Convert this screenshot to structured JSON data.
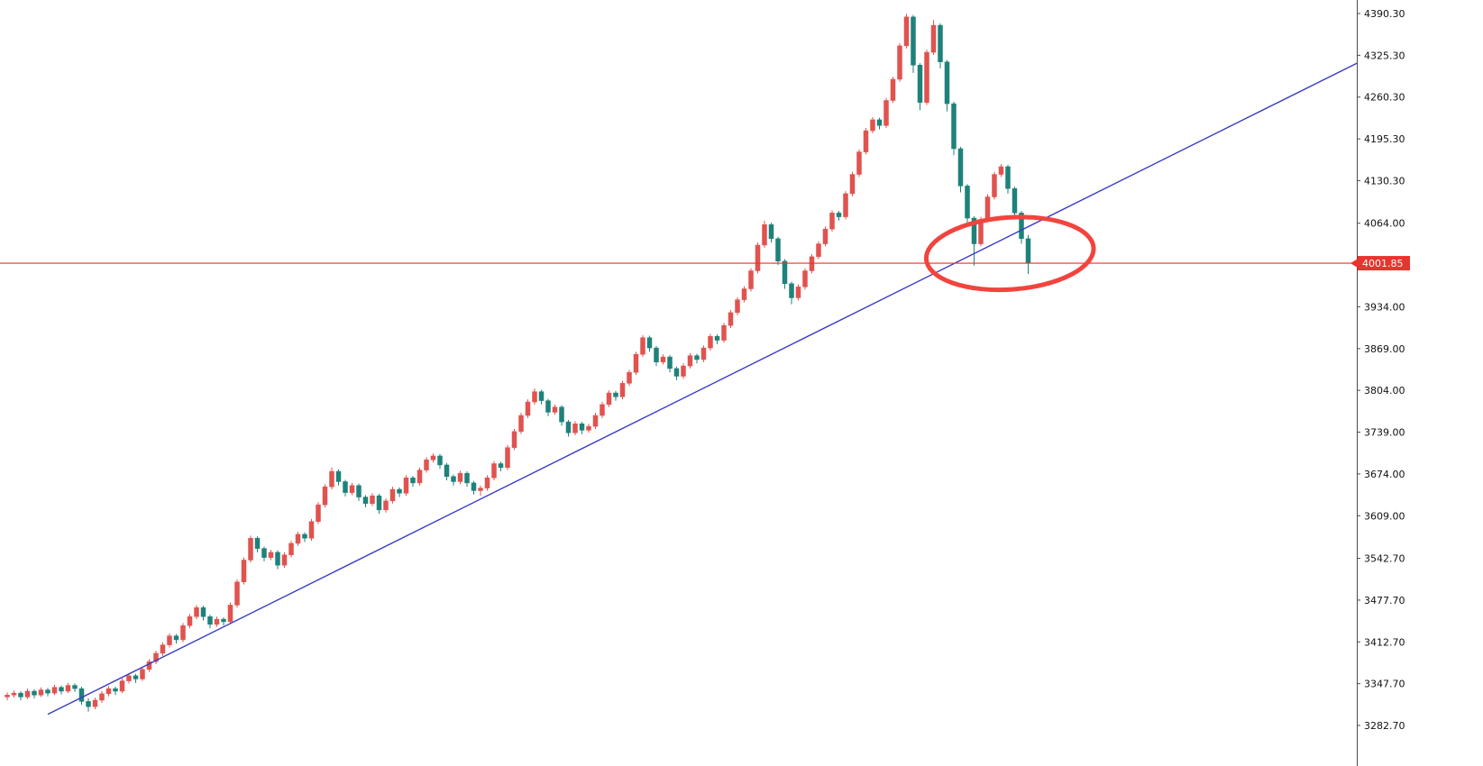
{
  "window": {
    "background": "#ffffff"
  },
  "chart_data": {
    "type": "candlestick",
    "title": "",
    "time_axis_visible": false,
    "colors": {
      "bull": "#e0534f",
      "bear": "#1e827a",
      "axis_text": "#101010",
      "axis_line": "#4a4a4a"
    },
    "price_axis": {
      "side": "right",
      "min": 3282.7,
      "max": 4390.3,
      "ticks": [
        {
          "label": "4390.30",
          "value": 4390.3
        },
        {
          "label": "4325.30",
          "value": 4325.3
        },
        {
          "label": "4260.30",
          "value": 4260.3
        },
        {
          "label": "4195.30",
          "value": 4195.3
        },
        {
          "label": "4130.30",
          "value": 4130.3
        },
        {
          "label": "4064.00",
          "value": 4064.0
        },
        {
          "label": "3934.00",
          "value": 3934.0
        },
        {
          "label": "3869.00",
          "value": 3869.0
        },
        {
          "label": "3804.00",
          "value": 3804.0
        },
        {
          "label": "3739.00",
          "value": 3739.0
        },
        {
          "label": "3674.00",
          "value": 3674.0
        },
        {
          "label": "3609.00",
          "value": 3609.0
        },
        {
          "label": "3542.70",
          "value": 3542.7
        },
        {
          "label": "3477.70",
          "value": 3477.7
        },
        {
          "label": "3412.70",
          "value": 3412.7
        },
        {
          "label": "3347.70",
          "value": 3347.7
        },
        {
          "label": "3282.70",
          "value": 3282.7
        }
      ]
    },
    "price_line": {
      "value": 4001.85,
      "label": "4001.85",
      "line_color": "#ff2a26",
      "tag_color": "#e8342e"
    },
    "trendline": {
      "from": {
        "index": 6,
        "price": 3300
      },
      "to": {
        "index": 200,
        "price": 4315
      },
      "color": "#3a3ac8"
    },
    "annotations": [
      {
        "type": "ellipse",
        "center_index": 148.3,
        "center_price": 4017,
        "radius_index": 12.4,
        "radius_price": 56,
        "color": "#f2443e",
        "stroke_width": 5
      }
    ],
    "candles": [
      [
        3327,
        3334,
        3322,
        3330
      ],
      [
        3330,
        3337,
        3326,
        3333
      ],
      [
        3333,
        3336,
        3322,
        3327
      ],
      [
        3327,
        3340,
        3324,
        3336
      ],
      [
        3336,
        3339,
        3325,
        3330
      ],
      [
        3330,
        3342,
        3327,
        3338
      ],
      [
        3338,
        3341,
        3328,
        3333
      ],
      [
        3333,
        3346,
        3330,
        3342
      ],
      [
        3342,
        3345,
        3331,
        3336
      ],
      [
        3336,
        3349,
        3333,
        3345
      ],
      [
        3345,
        3348,
        3335,
        3340
      ],
      [
        3340,
        3343,
        3315,
        3320
      ],
      [
        3320,
        3325,
        3304,
        3312
      ],
      [
        3312,
        3326,
        3308,
        3322
      ],
      [
        3322,
        3336,
        3318,
        3332
      ],
      [
        3332,
        3344,
        3328,
        3340
      ],
      [
        3340,
        3343,
        3330,
        3336
      ],
      [
        3336,
        3356,
        3333,
        3352
      ],
      [
        3352,
        3364,
        3348,
        3360
      ],
      [
        3360,
        3363,
        3349,
        3355
      ],
      [
        3355,
        3374,
        3352,
        3370
      ],
      [
        3370,
        3386,
        3366,
        3382
      ],
      [
        3382,
        3399,
        3378,
        3395
      ],
      [
        3395,
        3412,
        3391,
        3408
      ],
      [
        3408,
        3426,
        3404,
        3422
      ],
      [
        3422,
        3425,
        3410,
        3416
      ],
      [
        3416,
        3442,
        3412,
        3438
      ],
      [
        3438,
        3456,
        3434,
        3452
      ],
      [
        3452,
        3470,
        3448,
        3466
      ],
      [
        3466,
        3469,
        3446,
        3452
      ],
      [
        3452,
        3455,
        3434,
        3440
      ],
      [
        3440,
        3452,
        3436,
        3448
      ],
      [
        3448,
        3451,
        3438,
        3444
      ],
      [
        3444,
        3474,
        3440,
        3470
      ],
      [
        3470,
        3510,
        3466,
        3506
      ],
      [
        3506,
        3544,
        3502,
        3540
      ],
      [
        3540,
        3578,
        3536,
        3574
      ],
      [
        3574,
        3577,
        3552,
        3558
      ],
      [
        3558,
        3561,
        3538,
        3544
      ],
      [
        3544,
        3556,
        3540,
        3552
      ],
      [
        3552,
        3555,
        3526,
        3532
      ],
      [
        3532,
        3552,
        3528,
        3548
      ],
      [
        3548,
        3570,
        3544,
        3566
      ],
      [
        3566,
        3584,
        3562,
        3580
      ],
      [
        3580,
        3583,
        3568,
        3574
      ],
      [
        3574,
        3604,
        3570,
        3600
      ],
      [
        3600,
        3630,
        3596,
        3626
      ],
      [
        3626,
        3658,
        3622,
        3654
      ],
      [
        3654,
        3684,
        3650,
        3678
      ],
      [
        3678,
        3681,
        3656,
        3662
      ],
      [
        3662,
        3665,
        3639,
        3645
      ],
      [
        3645,
        3660,
        3641,
        3656
      ],
      [
        3656,
        3659,
        3632,
        3638
      ],
      [
        3638,
        3641,
        3622,
        3628
      ],
      [
        3628,
        3644,
        3624,
        3640
      ],
      [
        3640,
        3643,
        3612,
        3618
      ],
      [
        3618,
        3636,
        3614,
        3632
      ],
      [
        3632,
        3654,
        3628,
        3650
      ],
      [
        3650,
        3653,
        3638,
        3644
      ],
      [
        3644,
        3672,
        3640,
        3668
      ],
      [
        3668,
        3671,
        3654,
        3660
      ],
      [
        3660,
        3684,
        3656,
        3680
      ],
      [
        3680,
        3700,
        3676,
        3696
      ],
      [
        3696,
        3706,
        3692,
        3702
      ],
      [
        3702,
        3705,
        3682,
        3688
      ],
      [
        3688,
        3691,
        3664,
        3670
      ],
      [
        3670,
        3673,
        3656,
        3662
      ],
      [
        3662,
        3679,
        3658,
        3675
      ],
      [
        3675,
        3678,
        3654,
        3660
      ],
      [
        3660,
        3663,
        3642,
        3648
      ],
      [
        3648,
        3656,
        3640,
        3652
      ],
      [
        3652,
        3672,
        3648,
        3668
      ],
      [
        3668,
        3694,
        3664,
        3690
      ],
      [
        3690,
        3693,
        3678,
        3684
      ],
      [
        3684,
        3719,
        3680,
        3715
      ],
      [
        3715,
        3744,
        3711,
        3740
      ],
      [
        3740,
        3769,
        3736,
        3765
      ],
      [
        3765,
        3790,
        3761,
        3786
      ],
      [
        3786,
        3807,
        3782,
        3802
      ],
      [
        3802,
        3805,
        3782,
        3788
      ],
      [
        3788,
        3791,
        3764,
        3770
      ],
      [
        3770,
        3782,
        3766,
        3778
      ],
      [
        3778,
        3781,
        3749,
        3755
      ],
      [
        3755,
        3758,
        3732,
        3738
      ],
      [
        3738,
        3756,
        3734,
        3752
      ],
      [
        3752,
        3755,
        3736,
        3742
      ],
      [
        3742,
        3752,
        3738,
        3748
      ],
      [
        3748,
        3769,
        3744,
        3765
      ],
      [
        3765,
        3786,
        3761,
        3782
      ],
      [
        3782,
        3804,
        3778,
        3800
      ],
      [
        3800,
        3803,
        3788,
        3794
      ],
      [
        3794,
        3819,
        3790,
        3815
      ],
      [
        3815,
        3836,
        3811,
        3832
      ],
      [
        3832,
        3864,
        3828,
        3860
      ],
      [
        3860,
        3890,
        3856,
        3886
      ],
      [
        3886,
        3889,
        3864,
        3870
      ],
      [
        3870,
        3873,
        3842,
        3848
      ],
      [
        3848,
        3860,
        3844,
        3856
      ],
      [
        3856,
        3859,
        3832,
        3838
      ],
      [
        3838,
        3841,
        3820,
        3826
      ],
      [
        3826,
        3846,
        3822,
        3842
      ],
      [
        3842,
        3862,
        3838,
        3858
      ],
      [
        3858,
        3861,
        3846,
        3852
      ],
      [
        3852,
        3874,
        3848,
        3870
      ],
      [
        3870,
        3892,
        3866,
        3888
      ],
      [
        3888,
        3891,
        3876,
        3882
      ],
      [
        3882,
        3909,
        3878,
        3905
      ],
      [
        3905,
        3929,
        3901,
        3925
      ],
      [
        3925,
        3949,
        3921,
        3945
      ],
      [
        3945,
        3966,
        3941,
        3962
      ],
      [
        3962,
        3994,
        3958,
        3990
      ],
      [
        3990,
        4034,
        3986,
        4030
      ],
      [
        4030,
        4068,
        4026,
        4062
      ],
      [
        4062,
        4065,
        4034,
        4040
      ],
      [
        4040,
        4043,
        3999,
        4005
      ],
      [
        4005,
        4008,
        3962,
        3970
      ],
      [
        3970,
        3973,
        3938,
        3948
      ],
      [
        3948,
        3969,
        3944,
        3965
      ],
      [
        3965,
        3994,
        3961,
        3990
      ],
      [
        3990,
        4016,
        3986,
        4012
      ],
      [
        4012,
        4036,
        4008,
        4032
      ],
      [
        4032,
        4059,
        4028,
        4055
      ],
      [
        4055,
        4084,
        4051,
        4080
      ],
      [
        4080,
        4083,
        4068,
        4074
      ],
      [
        4074,
        4114,
        4070,
        4110
      ],
      [
        4110,
        4144,
        4106,
        4140
      ],
      [
        4140,
        4179,
        4136,
        4175
      ],
      [
        4175,
        4212,
        4171,
        4208
      ],
      [
        4208,
        4229,
        4204,
        4225
      ],
      [
        4225,
        4228,
        4210,
        4216
      ],
      [
        4216,
        4259,
        4212,
        4255
      ],
      [
        4255,
        4292,
        4251,
        4288
      ],
      [
        4288,
        4344,
        4284,
        4340
      ],
      [
        4340,
        4390,
        4336,
        4385
      ],
      [
        4385,
        4388,
        4298,
        4310
      ],
      [
        4310,
        4313,
        4240,
        4252
      ],
      [
        4252,
        4334,
        4248,
        4330
      ],
      [
        4330,
        4380,
        4326,
        4372
      ],
      [
        4372,
        4375,
        4305,
        4315
      ],
      [
        4315,
        4318,
        4238,
        4250
      ],
      [
        4250,
        4253,
        4170,
        4180
      ],
      [
        4180,
        4183,
        4112,
        4122
      ],
      [
        4122,
        4125,
        4062,
        4072
      ],
      [
        4072,
        4075,
        3998,
        4032
      ],
      [
        4032,
        4074,
        4028,
        4070
      ],
      [
        4070,
        4109,
        4066,
        4105
      ],
      [
        4105,
        4144,
        4101,
        4140
      ],
      [
        4140,
        4156,
        4136,
        4152
      ],
      [
        4152,
        4155,
        4110,
        4118
      ],
      [
        4118,
        4121,
        4072,
        4080
      ],
      [
        4080,
        4083,
        4032,
        4040
      ],
      [
        4040,
        4046,
        3985,
        4002
      ]
    ]
  }
}
